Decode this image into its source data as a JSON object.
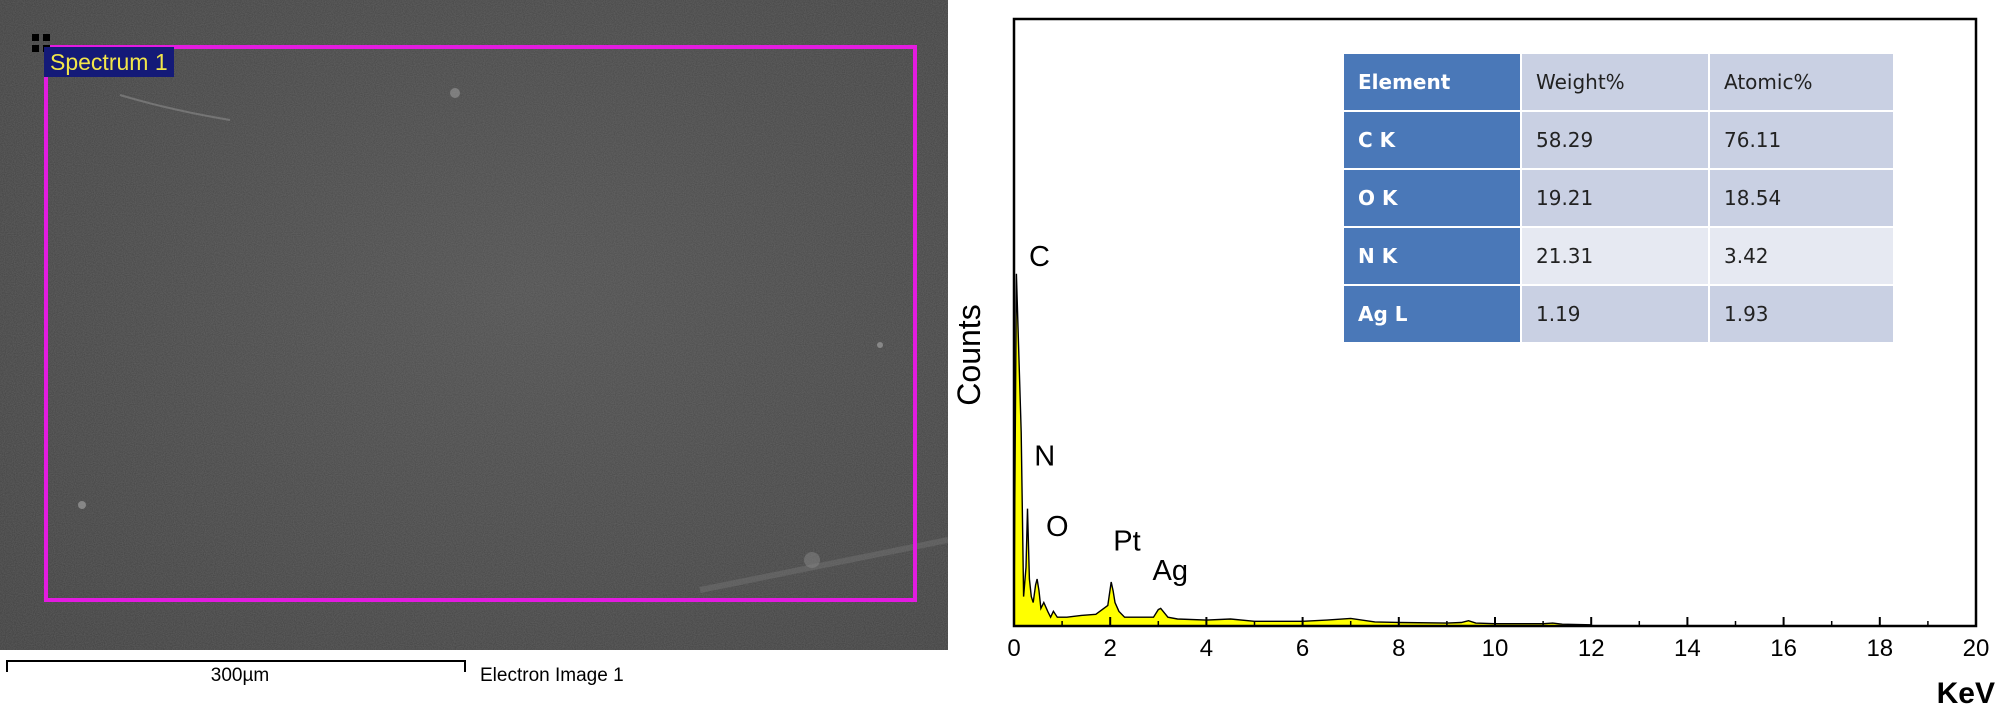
{
  "sem": {
    "spectrum_label": "Spectrum 1",
    "scale_label": "300µm",
    "image_caption": "Electron Image 1"
  },
  "table": {
    "headers": [
      "Element",
      "Weight%",
      "Atomic%"
    ],
    "rows": [
      [
        "C K",
        "58.29",
        "76.11"
      ],
      [
        "O K",
        "19.21",
        "18.54"
      ],
      [
        "N K",
        "21.31",
        "3.42"
      ],
      [
        "Ag L",
        "1.19",
        "1.93"
      ]
    ]
  },
  "chart_data": {
    "type": "line",
    "title": "",
    "xlabel": "KeV",
    "ylabel": "Counts",
    "xlim": [
      0,
      20
    ],
    "ylim": [
      0,
      100
    ],
    "x_ticks": [
      0,
      2,
      4,
      6,
      8,
      10,
      12,
      14,
      16,
      18,
      20
    ],
    "series": [
      {
        "x": [
          0,
          0.05,
          0.15,
          0.2,
          0.25,
          0.28,
          0.32,
          0.36,
          0.4,
          0.45,
          0.48,
          0.52,
          0.56,
          0.62,
          0.7,
          0.76,
          0.82,
          0.9,
          1.1,
          1.4,
          1.7,
          1.95,
          2.02,
          2.06,
          2.1,
          2.18,
          2.3,
          2.6,
          2.9,
          3.0,
          3.05,
          3.1,
          3.2,
          3.4,
          4.0,
          4.5,
          5.0,
          6.0,
          6.5,
          7.0,
          7.5,
          8.0,
          9.0,
          9.3,
          9.45,
          9.6,
          10.0,
          11.0,
          11.2,
          11.4,
          12.0
        ],
        "y": [
          2,
          60,
          33,
          5,
          10,
          20,
          8,
          5,
          4,
          7,
          8,
          6,
          3,
          4,
          2.5,
          1.5,
          2.5,
          1.5,
          1.5,
          1.8,
          2.0,
          3.5,
          7.5,
          6.0,
          4.0,
          2.5,
          1.5,
          1.5,
          1.5,
          2.8,
          3.0,
          2.5,
          1.5,
          1.2,
          1.0,
          1.2,
          0.8,
          0.8,
          1.0,
          1.3,
          0.7,
          0.6,
          0.5,
          0.6,
          0.9,
          0.5,
          0.4,
          0.4,
          0.5,
          0.3,
          0.2
        ]
      }
    ],
    "peak_labels": [
      {
        "label": "C",
        "x": 0.28,
        "y": 60
      },
      {
        "label": "N",
        "x": 0.39,
        "y": 26
      },
      {
        "label": "O",
        "x": 0.65,
        "y": 14
      },
      {
        "label": "Pt",
        "x": 2.1,
        "y": 11.5
      },
      {
        "label": "Ag",
        "x": 3.0,
        "y": 6.5
      }
    ],
    "fill_color": "#ffff00",
    "line_color": "#000000"
  }
}
